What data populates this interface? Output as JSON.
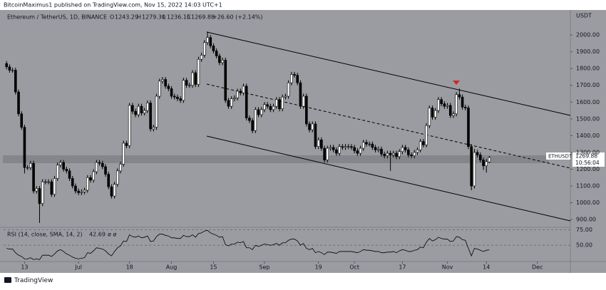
{
  "header": {
    "publisher": "BitcoinMaximus1 published on TradingView.com, Nov 15, 2022 14:03 UTC+1",
    "footer": "TradingView"
  },
  "chart_data": {
    "type": "candlestick",
    "title": "Ethereum / TetherUS, 1D, BINANCE",
    "ohlc_letters": [
      "O",
      "H",
      "L",
      "C"
    ],
    "ohlc_value_labels": [
      "1243.29",
      "1279.30",
      "1236.15",
      "1269.88"
    ],
    "change": "+26.60 (+2.14%)",
    "y_axis_label": "USDT",
    "symbol": "ETHUSDT",
    "countdown": "10:56:04",
    "up_color": "#ffffff",
    "down_color": "#000000",
    "x": [
      "2022-06-07",
      "2022-06-08",
      "2022-06-09",
      "2022-06-10",
      "2022-06-11",
      "2022-06-12",
      "2022-06-13",
      "2022-06-14",
      "2022-06-15",
      "2022-06-16",
      "2022-06-17",
      "2022-06-18",
      "2022-06-19",
      "2022-06-20",
      "2022-06-21",
      "2022-06-22",
      "2022-06-23",
      "2022-06-24",
      "2022-06-25",
      "2022-06-26",
      "2022-06-27",
      "2022-06-28",
      "2022-06-29",
      "2022-06-30",
      "2022-07-01",
      "2022-07-02",
      "2022-07-03",
      "2022-07-04",
      "2022-07-05",
      "2022-07-06",
      "2022-07-07",
      "2022-07-08",
      "2022-07-09",
      "2022-07-10",
      "2022-07-11",
      "2022-07-12",
      "2022-07-13",
      "2022-07-14",
      "2022-07-15",
      "2022-07-16",
      "2022-07-17",
      "2022-07-18",
      "2022-07-19",
      "2022-07-20",
      "2022-07-21",
      "2022-07-22",
      "2022-07-23",
      "2022-07-24",
      "2022-07-25",
      "2022-07-26",
      "2022-07-27",
      "2022-07-28",
      "2022-07-29",
      "2022-07-30",
      "2022-07-31",
      "2022-08-01",
      "2022-08-02",
      "2022-08-03",
      "2022-08-04",
      "2022-08-05",
      "2022-08-06",
      "2022-08-07",
      "2022-08-08",
      "2022-08-09",
      "2022-08-10",
      "2022-08-11",
      "2022-08-12",
      "2022-08-13",
      "2022-08-14",
      "2022-08-15",
      "2022-08-16",
      "2022-08-17",
      "2022-08-18",
      "2022-08-19",
      "2022-08-20",
      "2022-08-21",
      "2022-08-22",
      "2022-08-23",
      "2022-08-24",
      "2022-08-25",
      "2022-08-26",
      "2022-08-27",
      "2022-08-28",
      "2022-08-29",
      "2022-08-30",
      "2022-08-31",
      "2022-09-01",
      "2022-09-02",
      "2022-09-03",
      "2022-09-04",
      "2022-09-05",
      "2022-09-06",
      "2022-09-07",
      "2022-09-08",
      "2022-09-09",
      "2022-09-10",
      "2022-09-11",
      "2022-09-12",
      "2022-09-13",
      "2022-09-14",
      "2022-09-15",
      "2022-09-16",
      "2022-09-17",
      "2022-09-18",
      "2022-09-19",
      "2022-09-20",
      "2022-09-21",
      "2022-09-22",
      "2022-09-23",
      "2022-09-24",
      "2022-09-25",
      "2022-09-26",
      "2022-09-27",
      "2022-09-28",
      "2022-09-29",
      "2022-09-30",
      "2022-10-01",
      "2022-10-02",
      "2022-10-03",
      "2022-10-04",
      "2022-10-05",
      "2022-10-06",
      "2022-10-07",
      "2022-10-08",
      "2022-10-09",
      "2022-10-10",
      "2022-10-11",
      "2022-10-12",
      "2022-10-13",
      "2022-10-14",
      "2022-10-15",
      "2022-10-16",
      "2022-10-17",
      "2022-10-18",
      "2022-10-19",
      "2022-10-20",
      "2022-10-21",
      "2022-10-22",
      "2022-10-23",
      "2022-10-24",
      "2022-10-25",
      "2022-10-26",
      "2022-10-27",
      "2022-10-28",
      "2022-10-29",
      "2022-10-30",
      "2022-10-31",
      "2022-11-01",
      "2022-11-02",
      "2022-11-03",
      "2022-11-04",
      "2022-11-05",
      "2022-11-06",
      "2022-11-07",
      "2022-11-08",
      "2022-11-09",
      "2022-11-10",
      "2022-11-11",
      "2022-11-12",
      "2022-11-13",
      "2022-11-14",
      "2022-11-15"
    ],
    "open": [
      1830,
      1810,
      1790,
      1790,
      1660,
      1530,
      1450,
      1210,
      1210,
      1235,
      1070,
      1085,
      995,
      1125,
      1125,
      1125,
      1050,
      1145,
      1225,
      1240,
      1200,
      1190,
      1145,
      1100,
      1070,
      1060,
      1065,
      1075,
      1150,
      1135,
      1185,
      1240,
      1235,
      1215,
      1170,
      1095,
      1040,
      1110,
      1190,
      1230,
      1355,
      1340,
      1580,
      1545,
      1525,
      1575,
      1535,
      1550,
      1595,
      1440,
      1450,
      1635,
      1725,
      1735,
      1695,
      1680,
      1635,
      1630,
      1620,
      1610,
      1730,
      1700,
      1700,
      1775,
      1705,
      1855,
      1880,
      1955,
      1985,
      1935,
      1905,
      1875,
      1835,
      1850,
      1610,
      1575,
      1620,
      1625,
      1665,
      1655,
      1695,
      1505,
      1490,
      1430,
      1555,
      1525,
      1555,
      1585,
      1575,
      1555,
      1575,
      1615,
      1560,
      1630,
      1635,
      1715,
      1765,
      1760,
      1715,
      1575,
      1635,
      1470,
      1435,
      1470,
      1335,
      1375,
      1325,
      1255,
      1325,
      1330,
      1315,
      1295,
      1335,
      1330,
      1335,
      1335,
      1330,
      1310,
      1295,
      1325,
      1360,
      1350,
      1350,
      1330,
      1315,
      1320,
      1290,
      1280,
      1295,
      1285,
      1295,
      1275,
      1305,
      1330,
      1315,
      1285,
      1280,
      1300,
      1315,
      1365,
      1345,
      1460,
      1565,
      1510,
      1550,
      1615,
      1590,
      1575,
      1580,
      1520,
      1530,
      1645,
      1630,
      1570,
      1565,
      1335,
      1100,
      1300,
      1285,
      1255,
      1220,
      1243.29
    ],
    "high": [
      1845,
      1825,
      1805,
      1805,
      1675,
      1545,
      1465,
      1225,
      1250,
      1250,
      1100,
      1100,
      1140,
      1140,
      1140,
      1140,
      1160,
      1240,
      1255,
      1255,
      1215,
      1205,
      1160,
      1115,
      1085,
      1080,
      1090,
      1165,
      1165,
      1200,
      1255,
      1255,
      1250,
      1230,
      1185,
      1110,
      1125,
      1205,
      1245,
      1370,
      1370,
      1595,
      1595,
      1560,
      1590,
      1590,
      1565,
      1610,
      1610,
      1465,
      1650,
      1740,
      1750,
      1750,
      1710,
      1695,
      1650,
      1645,
      1635,
      1745,
      1745,
      1715,
      1790,
      1790,
      1870,
      1895,
      1970,
      2020,
      2000,
      1950,
      1920,
      1890,
      1865,
      1865,
      1625,
      1635,
      1640,
      1680,
      1680,
      1710,
      1710,
      1520,
      1505,
      1570,
      1570,
      1570,
      1600,
      1600,
      1590,
      1590,
      1630,
      1630,
      1645,
      1650,
      1730,
      1780,
      1780,
      1775,
      1730,
      1650,
      1650,
      1485,
      1485,
      1485,
      1390,
      1390,
      1340,
      1340,
      1345,
      1345,
      1330,
      1350,
      1350,
      1350,
      1350,
      1350,
      1345,
      1325,
      1340,
      1375,
      1375,
      1365,
      1365,
      1345,
      1335,
      1335,
      1305,
      1310,
      1310,
      1310,
      1310,
      1320,
      1345,
      1345,
      1330,
      1300,
      1315,
      1330,
      1380,
      1380,
      1475,
      1580,
      1580,
      1565,
      1630,
      1630,
      1605,
      1595,
      1595,
      1545,
      1660,
      1680,
      1645,
      1585,
      1580,
      1350,
      1320,
      1315,
      1300,
      1270,
      1260,
      1279.3
    ],
    "low": [
      1795,
      1775,
      1775,
      1645,
      1515,
      1435,
      1175,
      1195,
      1195,
      1055,
      1055,
      880,
      980,
      1110,
      1110,
      1035,
      1035,
      1130,
      1210,
      1185,
      1175,
      1130,
      1085,
      1055,
      1045,
      1045,
      1050,
      1060,
      1120,
      1120,
      1170,
      1220,
      1200,
      1155,
      1080,
      1025,
      1025,
      1095,
      1175,
      1215,
      1325,
      1325,
      1530,
      1510,
      1510,
      1520,
      1520,
      1535,
      1425,
      1425,
      1435,
      1620,
      1710,
      1680,
      1665,
      1620,
      1615,
      1605,
      1595,
      1595,
      1685,
      1685,
      1685,
      1690,
      1690,
      1840,
      1865,
      1940,
      1920,
      1890,
      1860,
      1820,
      1820,
      1595,
      1560,
      1560,
      1605,
      1610,
      1640,
      1640,
      1490,
      1475,
      1415,
      1415,
      1510,
      1510,
      1540,
      1560,
      1540,
      1540,
      1560,
      1545,
      1545,
      1615,
      1620,
      1700,
      1745,
      1700,
      1560,
      1560,
      1455,
      1420,
      1420,
      1320,
      1320,
      1310,
      1240,
      1240,
      1310,
      1300,
      1280,
      1280,
      1315,
      1315,
      1320,
      1315,
      1295,
      1280,
      1280,
      1310,
      1335,
      1335,
      1315,
      1300,
      1300,
      1275,
      1265,
      1265,
      1190,
      1270,
      1260,
      1260,
      1290,
      1300,
      1270,
      1265,
      1265,
      1285,
      1300,
      1330,
      1330,
      1445,
      1495,
      1495,
      1535,
      1575,
      1560,
      1560,
      1505,
      1505,
      1515,
      1615,
      1555,
      1550,
      1320,
      1075,
      1085,
      1270,
      1240,
      1195,
      1180,
      1236.15
    ],
    "close": [
      1810,
      1790,
      1790,
      1660,
      1530,
      1450,
      1210,
      1210,
      1235,
      1070,
      1085,
      995,
      1125,
      1125,
      1125,
      1050,
      1145,
      1225,
      1240,
      1200,
      1190,
      1145,
      1100,
      1070,
      1060,
      1065,
      1075,
      1150,
      1135,
      1185,
      1240,
      1235,
      1215,
      1170,
      1095,
      1040,
      1110,
      1190,
      1230,
      1355,
      1340,
      1580,
      1545,
      1525,
      1575,
      1535,
      1550,
      1595,
      1440,
      1450,
      1635,
      1725,
      1735,
      1695,
      1680,
      1635,
      1630,
      1620,
      1610,
      1730,
      1700,
      1700,
      1775,
      1705,
      1855,
      1880,
      1955,
      1985,
      1935,
      1905,
      1875,
      1835,
      1850,
      1610,
      1575,
      1620,
      1625,
      1665,
      1655,
      1695,
      1505,
      1490,
      1430,
      1555,
      1525,
      1555,
      1585,
      1575,
      1555,
      1575,
      1615,
      1560,
      1630,
      1635,
      1715,
      1765,
      1760,
      1715,
      1575,
      1635,
      1470,
      1435,
      1470,
      1335,
      1375,
      1325,
      1255,
      1325,
      1330,
      1315,
      1295,
      1335,
      1330,
      1335,
      1335,
      1330,
      1310,
      1295,
      1325,
      1360,
      1350,
      1350,
      1330,
      1315,
      1320,
      1290,
      1280,
      1295,
      1285,
      1295,
      1275,
      1305,
      1330,
      1315,
      1285,
      1280,
      1300,
      1315,
      1365,
      1345,
      1460,
      1565,
      1510,
      1550,
      1615,
      1590,
      1575,
      1580,
      1520,
      1530,
      1645,
      1630,
      1570,
      1565,
      1335,
      1100,
      1300,
      1285,
      1255,
      1220,
      1245,
      1269.88
    ],
    "xlim": [
      "2022-06-06",
      "2022-12-12"
    ],
    "xticks": [
      {
        "value": "2022-06-13",
        "label": "13"
      },
      {
        "value": "2022-07-01",
        "label": "Jul"
      },
      {
        "value": "2022-07-18",
        "label": "18"
      },
      {
        "value": "2022-08-01",
        "label": "Aug"
      },
      {
        "value": "2022-08-15",
        "label": "15"
      },
      {
        "value": "2022-09-01",
        "label": "Sep"
      },
      {
        "value": "2022-09-19",
        "label": "19"
      },
      {
        "value": "2022-10-01",
        "label": "Oct"
      },
      {
        "value": "2022-10-17",
        "label": "17"
      },
      {
        "value": "2022-11-01",
        "label": "Nov"
      },
      {
        "value": "2022-11-14",
        "label": "14"
      },
      {
        "value": "2022-12-01",
        "label": "Dec"
      }
    ],
    "ylim": [
      858,
      2149
    ],
    "yticks": [
      {
        "value": 900,
        "label": "900.00"
      },
      {
        "value": 1000,
        "label": "1000.00"
      },
      {
        "value": 1100,
        "label": "1100.00"
      },
      {
        "value": 1200,
        "label": "1200.00"
      },
      {
        "value": 1300,
        "label": "1300.00"
      },
      {
        "value": 1400,
        "label": "1400.00"
      },
      {
        "value": 1500,
        "label": "1500.00"
      },
      {
        "value": 1600,
        "label": "1600.00"
      },
      {
        "value": 1700,
        "label": "1700.00"
      },
      {
        "value": 1800,
        "label": "1800.00"
      },
      {
        "value": 1900,
        "label": "1900.00"
      },
      {
        "value": 2000,
        "label": "2000.00"
      }
    ],
    "rsi": {
      "label": "RSI (14, close, SMA, 14, 2)",
      "na": "ø ø",
      "color": "#000000",
      "ylim": [
        25,
        79
      ],
      "yticks": [
        {
          "value": 75,
          "label": "75.00"
        },
        {
          "value": 50,
          "label": "50.00"
        }
      ],
      "values": [
        45,
        44,
        44,
        38,
        34,
        32,
        28,
        28,
        30,
        27,
        28,
        27,
        34,
        34,
        34,
        32,
        36,
        41,
        43,
        40,
        36,
        34,
        31,
        29,
        28,
        29,
        30,
        38,
        37,
        41,
        46,
        45,
        44,
        41,
        36,
        33,
        40,
        46,
        49,
        57,
        56,
        67,
        64,
        63,
        65,
        62,
        63,
        65,
        56,
        57,
        64,
        68,
        68,
        66,
        65,
        62,
        62,
        61,
        61,
        66,
        64,
        64,
        67,
        63,
        69,
        70,
        73,
        74,
        70,
        68,
        66,
        63,
        64,
        51,
        49,
        52,
        52,
        55,
        54,
        56,
        46,
        46,
        43,
        50,
        48,
        50,
        52,
        51,
        50,
        51,
        53,
        50,
        54,
        54,
        58,
        60,
        60,
        57,
        50,
        53,
        45,
        43,
        45,
        38,
        40,
        38,
        35,
        39,
        39,
        38,
        37,
        40,
        40,
        40,
        40,
        40,
        39,
        38,
        40,
        43,
        42,
        42,
        41,
        40,
        40,
        38,
        38,
        39,
        39,
        40,
        38,
        41,
        43,
        42,
        40,
        40,
        42,
        43,
        47,
        46,
        55,
        61,
        57,
        59,
        63,
        61,
        60,
        60,
        56,
        57,
        64,
        63,
        59,
        58,
        45,
        33,
        45,
        44,
        42,
        40,
        42,
        42.69
      ]
    }
  }
}
